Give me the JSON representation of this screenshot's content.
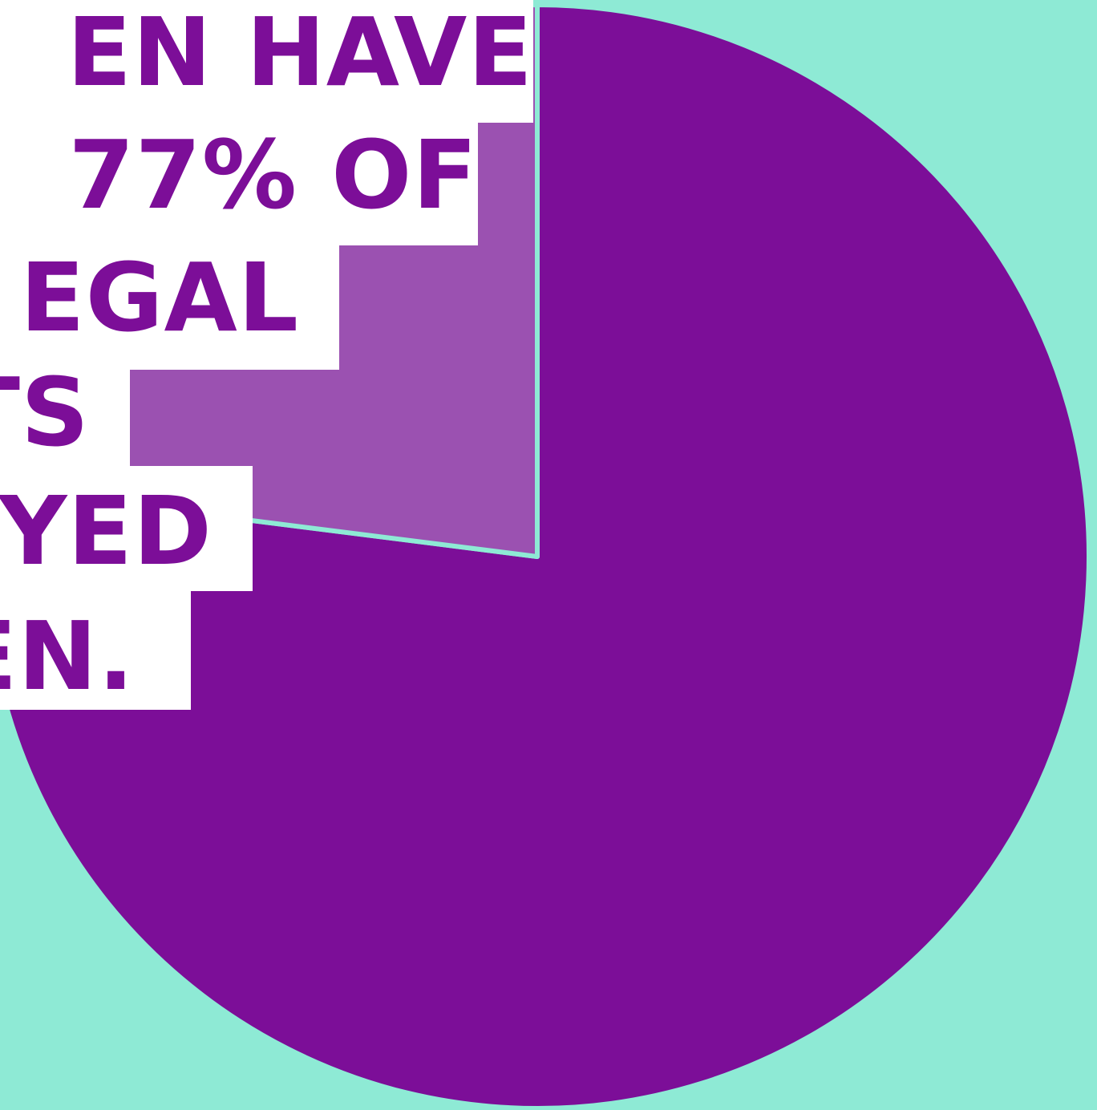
{
  "colors": {
    "background": "#8eead5",
    "headline_box": "#ffffff",
    "headline_text": "#7c0e98"
  },
  "headline": {
    "lines": [
      "EN HAVE",
      " 77% OF",
      "EGAL",
      "TS",
      "YED",
      "EN."
    ]
  },
  "chart_data": {
    "type": "pie",
    "slices": [
      {
        "value": 77,
        "color": "#7c0e98"
      },
      {
        "value": 23,
        "color": "#9b51b1"
      }
    ],
    "start_angle_deg": 0,
    "direction": "clockwise_from_top",
    "slice_separator_color": "#8eead5"
  }
}
